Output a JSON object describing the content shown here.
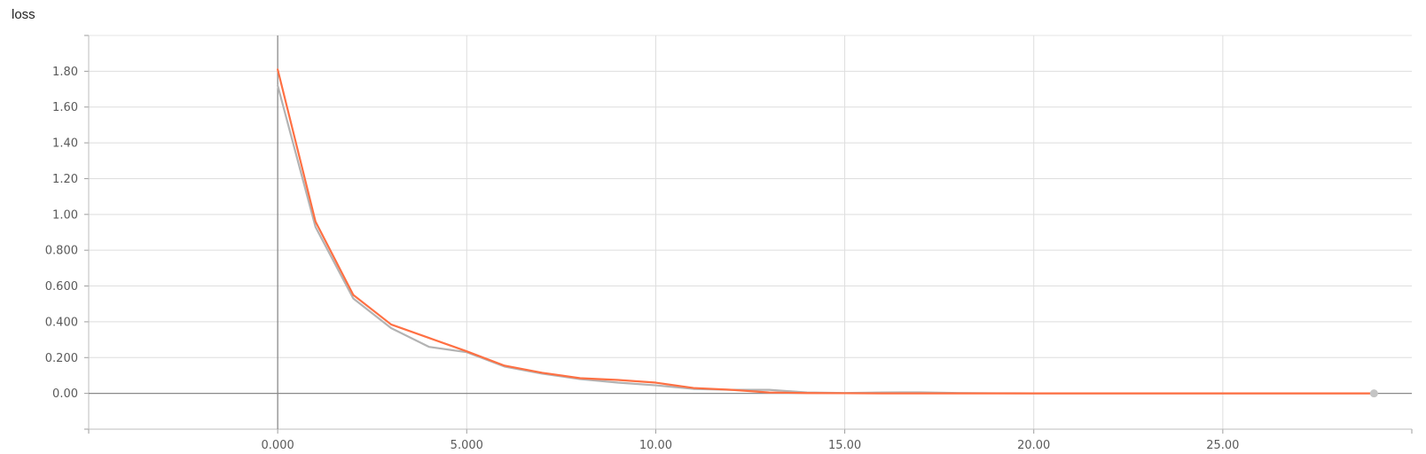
{
  "chart_data": {
    "type": "line",
    "title": "loss",
    "xlabel": "",
    "ylabel": "",
    "xlim": [
      -5,
      30
    ],
    "ylim": [
      -0.2,
      2.0
    ],
    "grid": true,
    "legend": "none",
    "x_ticks": [
      {
        "value": 0,
        "label": "0.000"
      },
      {
        "value": 5,
        "label": "5.000"
      },
      {
        "value": 10,
        "label": "10.00"
      },
      {
        "value": 15,
        "label": "15.00"
      },
      {
        "value": 20,
        "label": "20.00"
      },
      {
        "value": 25,
        "label": "25.00"
      }
    ],
    "y_ticks": [
      {
        "value": 0.0,
        "label": "0.00"
      },
      {
        "value": 0.2,
        "label": "0.200"
      },
      {
        "value": 0.4,
        "label": "0.400"
      },
      {
        "value": 0.6,
        "label": "0.600"
      },
      {
        "value": 0.8,
        "label": "0.800"
      },
      {
        "value": 1.0,
        "label": "1.00"
      },
      {
        "value": 1.2,
        "label": "1.20"
      },
      {
        "value": 1.4,
        "label": "1.40"
      },
      {
        "value": 1.6,
        "label": "1.60"
      },
      {
        "value": 1.8,
        "label": "1.80"
      }
    ],
    "x": [
      0,
      1,
      2,
      3,
      4,
      5,
      6,
      7,
      8,
      9,
      10,
      11,
      12,
      13,
      14,
      15,
      16,
      17,
      18,
      19,
      20,
      21,
      22,
      23,
      24,
      25,
      26,
      27,
      28,
      29
    ],
    "series": [
      {
        "color": "#ff7043",
        "values": [
          1.81,
          0.96,
          0.55,
          0.385,
          0.31,
          0.235,
          0.155,
          0.115,
          0.085,
          0.075,
          0.06,
          0.03,
          0.02,
          0.005,
          0.002,
          0.001,
          0.0,
          0.0,
          0.0,
          0.0,
          0.0,
          0.0,
          0.0,
          0.0,
          0.0,
          0.0,
          0.0,
          0.0,
          0.0,
          0.0
        ]
      },
      {
        "color": "#b3b3b3",
        "values": [
          1.72,
          0.93,
          0.53,
          0.365,
          0.26,
          0.23,
          0.15,
          0.11,
          0.08,
          0.06,
          0.045,
          0.025,
          0.02,
          0.02,
          0.005,
          0.002,
          0.005,
          0.006,
          0.002,
          0.001,
          0.0,
          0.0,
          0.0,
          0.0,
          0.0,
          0.0,
          0.0,
          0.0,
          0.0,
          0.0
        ]
      }
    ]
  }
}
